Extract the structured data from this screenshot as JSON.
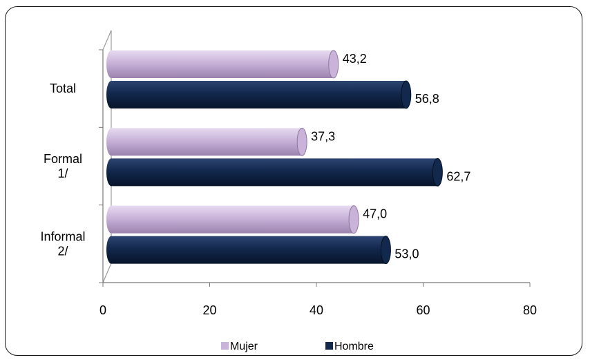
{
  "chart_data": {
    "type": "bar",
    "orientation": "horizontal",
    "categories": [
      "Total",
      "Formal 1/",
      "Informal 2/"
    ],
    "category_label_lines": [
      [
        "Total"
      ],
      [
        "Formal",
        "1/"
      ],
      [
        "Informal",
        "2/"
      ]
    ],
    "series": [
      {
        "name": "Mujer",
        "values": [
          43.2,
          37.3,
          47.0
        ],
        "labels": [
          "43,2",
          "37,3",
          "47,0"
        ],
        "color": "#c9b3d9"
      },
      {
        "name": "Hombre",
        "values": [
          56.8,
          62.7,
          53.0
        ],
        "labels": [
          "56,8",
          "62,7",
          "53,0"
        ],
        "color": "#13284d"
      }
    ],
    "x_ticks": [
      "0",
      "20",
      "40",
      "60",
      "80"
    ],
    "xlim": [
      0,
      80
    ],
    "title": "",
    "xlabel": "",
    "ylabel": "",
    "grid": false,
    "legend_position": "bottom",
    "style": "3d-cylinder"
  }
}
